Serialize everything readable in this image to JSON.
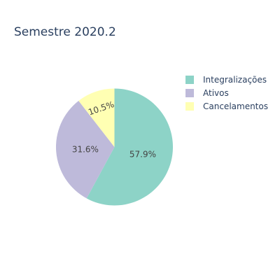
{
  "chart_data": {
    "type": "pie",
    "title": "Semestre 2020.2",
    "legend_position": "top-right",
    "slices": [
      {
        "label": "Integralizações",
        "value": 57.9,
        "text": "57.9%",
        "color": "#8dd3c7"
      },
      {
        "label": "Ativos",
        "value": 31.6,
        "text": "31.6%",
        "color": "#bebada"
      },
      {
        "label": "Cancelamentos",
        "value": 10.5,
        "text": "10.5%",
        "color": "#ffffb3"
      }
    ]
  }
}
